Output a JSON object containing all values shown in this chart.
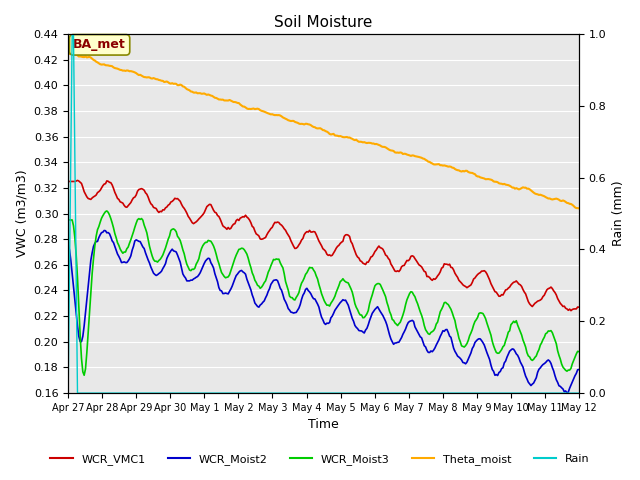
{
  "title": "Soil Moisture",
  "xlabel": "Time",
  "ylabel_left": "VWC (m3/m3)",
  "ylabel_right": "Rain (mm)",
  "ylim_left": [
    0.16,
    0.44
  ],
  "ylim_right": [
    0.0,
    1.0
  ],
  "yticks_left": [
    0.16,
    0.18,
    0.2,
    0.22,
    0.24,
    0.26,
    0.28,
    0.3,
    0.32,
    0.34,
    0.36,
    0.38,
    0.4,
    0.42,
    0.44
  ],
  "yticks_right": [
    0.0,
    0.2,
    0.4,
    0.6,
    0.8,
    1.0
  ],
  "xtick_labels": [
    "Apr 27",
    "Apr 28",
    "Apr 29",
    "Apr 30",
    "May 1",
    "May 2",
    "May 3",
    "May 4",
    "May 5",
    "May 6",
    "May 7",
    "May 8",
    "May 9",
    "May 10",
    "May 11",
    "May 12"
  ],
  "colors": {
    "WCR_VMC1": "#cc0000",
    "WCR_Moist2": "#0000cc",
    "WCR_Moist3": "#00cc00",
    "Theta_moist": "#ffaa00",
    "Rain": "#00cccc",
    "background": "#e8e8e8",
    "grid": "#ffffff"
  },
  "annotation_text": "BA_met",
  "annotation_color": "#8b0000",
  "annotation_bg": "#ffffcc"
}
